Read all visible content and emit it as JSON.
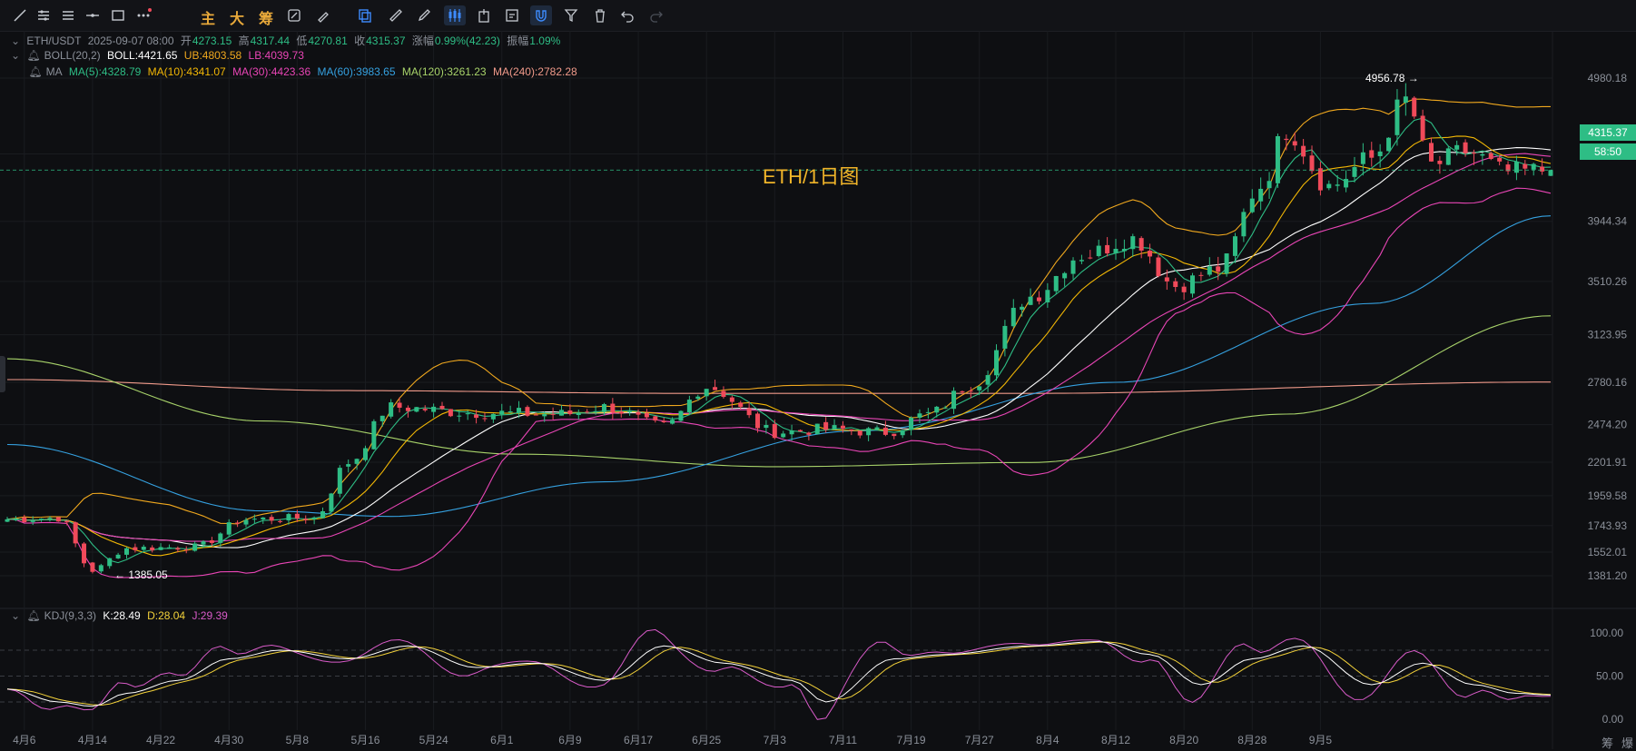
{
  "toolbar": {
    "labels": {
      "main": "主",
      "big": "大",
      "chips": "筹"
    },
    "tools": [
      "line-tool-icon",
      "parallel-lines-icon",
      "multi-lines-icon",
      "horizontal-ray-icon",
      "rectangle-icon",
      "more-dots-icon",
      "measure-icon",
      "brush-icon",
      "copy-icon",
      "ruler-icon",
      "pen-icon",
      "candle-type-icon",
      "export-icon",
      "edit-note-icon",
      "magnet-icon",
      "filter-icon",
      "trash-icon",
      "undo-icon",
      "redo-icon"
    ]
  },
  "legend": {
    "symbol": "ETH/USDT",
    "datetime": "2025-09-07 08:00",
    "open_label": "开",
    "open": "4273.15",
    "high_label": "高",
    "high": "4317.44",
    "low_label": "低",
    "low": "4270.81",
    "close_label": "收",
    "close": "4315.37",
    "change_label": "涨幅",
    "change": "0.99%(42.23)",
    "amp_label": "振幅",
    "amp": "1.09%",
    "boll_name": "BOLL(20,2)",
    "boll": "BOLL:4421.65",
    "ub": "UB:4803.58",
    "lb": "LB:4039.73",
    "ma_name": "MA",
    "ma5": "MA(5):4328.79",
    "ma10": "MA(10):4341.07",
    "ma30": "MA(30):4423.36",
    "ma60": "MA(60):3983.65",
    "ma120": "MA(120):3261.23",
    "ma240": "MA(240):2782.28",
    "kdj_name": "KDJ(9,3,3)",
    "k": "K:28.49",
    "d": "D:28.04",
    "j": "J:29.39"
  },
  "watermark": "ETH/1日图",
  "price_tag": {
    "price": "4315.37",
    "countdown": "58:50"
  },
  "annotations": {
    "high": "4956.78",
    "low": "1385.05"
  },
  "right_labels": [
    "筹",
    "爆"
  ],
  "colors": {
    "up": "#2ebd85",
    "down": "#f04a5a",
    "ma5": "#2ebd85",
    "ma10": "#f2b705",
    "ma30": "#e845b5",
    "ma60": "#35a1e0",
    "ma120": "#a8d36a",
    "ma240": "#f09a8a",
    "boll": "#ffffff",
    "band": "#f0a81e",
    "lb": "#e845b5",
    "k": "#ffffff",
    "d": "#f2d13a",
    "j": "#d85bc8"
  },
  "chart_data": {
    "type": "candlestick",
    "title": "ETH/USDT",
    "price_axis_ticks": [
      "4980.18",
      "4432.10",
      "3944.34",
      "3510.26",
      "3123.95",
      "2780.16",
      "2474.20",
      "2201.91",
      "1959.58",
      "1743.93",
      "1552.01",
      "1381.20"
    ],
    "x_ticks": [
      "4月6",
      "4月14",
      "4月22",
      "4月30",
      "5月8",
      "5月16",
      "5月24",
      "6月1",
      "6月9",
      "6月17",
      "6月25",
      "7月3",
      "7月11",
      "7月19",
      "7月27",
      "8月4",
      "8月12",
      "8月20",
      "8月28",
      "9月5"
    ],
    "kdj_ticks": [
      "100.00",
      "50.00",
      "0.00"
    ],
    "price_anchors": [
      {
        "day": 0,
        "close": 1790
      },
      {
        "day": 6,
        "close": 1800
      },
      {
        "day": 10,
        "close": 1420
      },
      {
        "day": 14,
        "close": 1580
      },
      {
        "day": 22,
        "close": 1590
      },
      {
        "day": 28,
        "close": 1790
      },
      {
        "day": 36,
        "close": 1800
      },
      {
        "day": 40,
        "close": 2200
      },
      {
        "day": 45,
        "close": 2600
      },
      {
        "day": 55,
        "close": 2560
      },
      {
        "day": 65,
        "close": 2550
      },
      {
        "day": 70,
        "close": 2600
      },
      {
        "day": 77,
        "close": 2460
      },
      {
        "day": 82,
        "close": 2750
      },
      {
        "day": 90,
        "close": 2420
      },
      {
        "day": 96,
        "close": 2440
      },
      {
        "day": 103,
        "close": 2420
      },
      {
        "day": 108,
        "close": 2550
      },
      {
        "day": 113,
        "close": 2760
      },
      {
        "day": 120,
        "close": 3400
      },
      {
        "day": 126,
        "close": 3700
      },
      {
        "day": 132,
        "close": 3820
      },
      {
        "day": 137,
        "close": 3480
      },
      {
        "day": 142,
        "close": 3600
      },
      {
        "day": 147,
        "close": 4200
      },
      {
        "day": 150,
        "close": 4600
      },
      {
        "day": 155,
        "close": 4200
      },
      {
        "day": 160,
        "close": 4400
      },
      {
        "day": 164,
        "close": 4820
      },
      {
        "day": 167,
        "close": 4350
      },
      {
        "day": 171,
        "close": 4450
      },
      {
        "day": 176,
        "close": 4300
      },
      {
        "day": 181,
        "close": 4315
      }
    ],
    "kdj_anchors": [
      {
        "day": 0,
        "k": 35
      },
      {
        "day": 6,
        "k": 20
      },
      {
        "day": 10,
        "k": 15
      },
      {
        "day": 14,
        "k": 30
      },
      {
        "day": 20,
        "k": 45
      },
      {
        "day": 26,
        "k": 70
      },
      {
        "day": 32,
        "k": 80
      },
      {
        "day": 40,
        "k": 70
      },
      {
        "day": 47,
        "k": 85
      },
      {
        "day": 55,
        "k": 60
      },
      {
        "day": 62,
        "k": 65
      },
      {
        "day": 70,
        "k": 45
      },
      {
        "day": 77,
        "k": 85
      },
      {
        "day": 84,
        "k": 65
      },
      {
        "day": 92,
        "k": 45
      },
      {
        "day": 96,
        "k": 20
      },
      {
        "day": 104,
        "k": 70
      },
      {
        "day": 110,
        "k": 75
      },
      {
        "day": 120,
        "k": 85
      },
      {
        "day": 128,
        "k": 90
      },
      {
        "day": 134,
        "k": 75
      },
      {
        "day": 140,
        "k": 40
      },
      {
        "day": 146,
        "k": 70
      },
      {
        "day": 152,
        "k": 85
      },
      {
        "day": 160,
        "k": 40
      },
      {
        "day": 166,
        "k": 65
      },
      {
        "day": 172,
        "k": 40
      },
      {
        "day": 177,
        "k": 30
      },
      {
        "day": 181,
        "k": 28
      }
    ],
    "ma120_anchors": [
      {
        "day": 0,
        "v": 2950
      },
      {
        "day": 30,
        "v": 2500
      },
      {
        "day": 60,
        "v": 2260
      },
      {
        "day": 90,
        "v": 2170
      },
      {
        "day": 120,
        "v": 2200
      },
      {
        "day": 150,
        "v": 2550
      },
      {
        "day": 181,
        "v": 3261
      }
    ],
    "ma240_anchors": [
      {
        "day": 0,
        "v": 2800
      },
      {
        "day": 40,
        "v": 2720
      },
      {
        "day": 80,
        "v": 2700
      },
      {
        "day": 120,
        "v": 2700
      },
      {
        "day": 181,
        "v": 2782
      }
    ],
    "ma60_anchors": [
      {
        "day": 0,
        "v": 2330
      },
      {
        "day": 30,
        "v": 1850
      },
      {
        "day": 45,
        "v": 1810
      },
      {
        "day": 70,
        "v": 2060
      },
      {
        "day": 100,
        "v": 2430
      },
      {
        "day": 130,
        "v": 2780
      },
      {
        "day": 160,
        "v": 3350
      },
      {
        "day": 181,
        "v": 3984
      }
    ]
  }
}
